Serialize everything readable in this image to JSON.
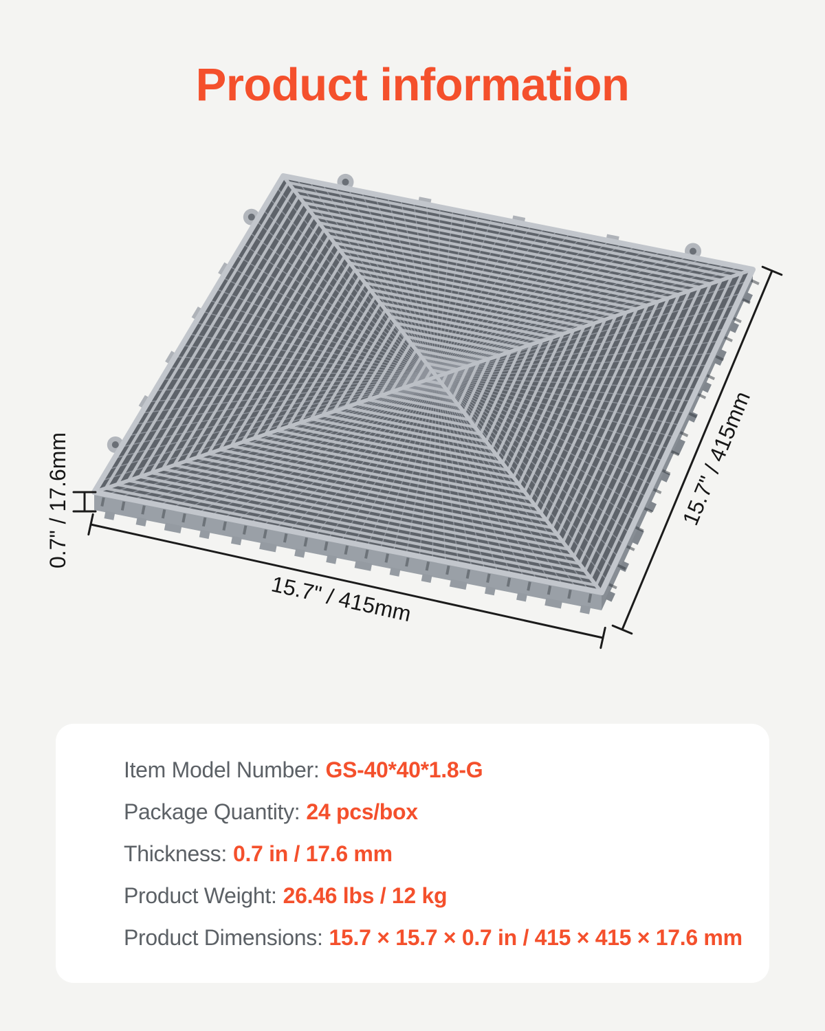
{
  "header": {
    "title": "Product information"
  },
  "colors": {
    "accent": "#F4502C",
    "page_bg": "#F4F4F2",
    "card_bg": "#FFFFFF",
    "label_gray": "#5C6166",
    "dimension_line": "#1B1B1B",
    "tile_slat_gray": "#B7BBC1",
    "tile_gap_gray": "#5E636A"
  },
  "diagram": {
    "product": "vented-interlocking-garage-floor-tile",
    "tile_color_name": "gray",
    "dimensions": {
      "bottom_edge": "15.7\" / 415mm",
      "right_edge": "15.7\" / 415mm",
      "thickness": "0.7\" / 17.6mm"
    }
  },
  "specs": {
    "rows": [
      {
        "label": "Item Model Number:",
        "value": "GS-40*40*1.8-G"
      },
      {
        "label": "Package Quantity:",
        "value": "24 pcs/box"
      },
      {
        "label": "Thickness:",
        "value": "0.7 in / 17.6 mm"
      },
      {
        "label": "Product Weight:",
        "value": "26.46 lbs / 12 kg"
      },
      {
        "label": "Product Dimensions:",
        "value": "15.7 × 15.7 × 0.7 in / 415 × 415 × 17.6 mm"
      }
    ]
  }
}
